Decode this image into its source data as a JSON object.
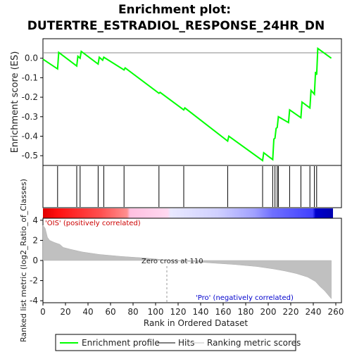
{
  "chart_data": {
    "type": "line",
    "title_line1": "Enrichment plot:",
    "title_line2": "DUTERTRE_ESTRADIOL_RESPONSE_24HR_DN",
    "es_panel": {
      "ylabel": "Enrichment score (ES)",
      "ylim": [
        -0.55,
        0.1
      ],
      "yticks": [
        "0.0",
        "-0.1",
        "-0.2",
        "-0.3",
        "-0.4",
        "-0.5"
      ],
      "ytick_values": [
        0.0,
        -0.1,
        -0.2,
        -0.3,
        -0.4,
        -0.5
      ],
      "series_name": "Enrichment profile",
      "color": "#00ff00",
      "points": [
        [
          0,
          -0.005
        ],
        [
          13,
          -0.055
        ],
        [
          14,
          0.03
        ],
        [
          30,
          -0.04
        ],
        [
          31,
          0.01
        ],
        [
          33,
          0.0
        ],
        [
          34,
          0.035
        ],
        [
          49,
          -0.03
        ],
        [
          50,
          0.005
        ],
        [
          53,
          -0.01
        ],
        [
          54,
          0.005
        ],
        [
          72,
          -0.06
        ],
        [
          73,
          -0.05
        ],
        [
          103,
          -0.18
        ],
        [
          104,
          -0.175
        ],
        [
          125,
          -0.265
        ],
        [
          126,
          -0.255
        ],
        [
          164,
          -0.425
        ],
        [
          165,
          -0.4
        ],
        [
          195,
          -0.525
        ],
        [
          196,
          -0.485
        ],
        [
          204,
          -0.52
        ],
        [
          205,
          -0.415
        ],
        [
          206,
          -0.41
        ],
        [
          207,
          -0.36
        ],
        [
          208,
          -0.355
        ],
        [
          209,
          -0.3
        ],
        [
          218,
          -0.33
        ],
        [
          219,
          -0.265
        ],
        [
          229,
          -0.305
        ],
        [
          230,
          -0.225
        ],
        [
          237,
          -0.255
        ],
        [
          238,
          -0.165
        ],
        [
          241,
          -0.185
        ],
        [
          242,
          -0.07
        ],
        [
          243,
          -0.085
        ],
        [
          244,
          0.05
        ],
        [
          256,
          0.0
        ]
      ]
    },
    "hits_panel": {
      "series_name": "Hits",
      "hit_ranks": [
        13,
        30,
        33,
        49,
        54,
        72,
        103,
        125,
        164,
        195,
        204,
        206,
        208,
        209,
        219,
        229,
        237,
        241,
        243
      ]
    },
    "ranking_panel": {
      "ylabel": "Ranked list metric (log2_Ratio_of_Classes)",
      "xlabel": "Rank in Ordered Dataset",
      "xlim": [
        0,
        265
      ],
      "ylim": [
        -4.2,
        4.2
      ],
      "xticks": [
        "0",
        "20",
        "40",
        "60",
        "80",
        "100",
        "120",
        "140",
        "160",
        "180",
        "200",
        "220",
        "240",
        "260"
      ],
      "xtick_values": [
        0,
        20,
        40,
        60,
        80,
        100,
        120,
        140,
        160,
        180,
        200,
        220,
        240,
        260
      ],
      "yticks": [
        "4",
        "2",
        "0",
        "-2",
        "-4"
      ],
      "ytick_values": [
        4,
        2,
        0,
        -2,
        -4
      ],
      "series_name": "Ranking metric scores",
      "metric_profile": [
        [
          0,
          3.5
        ],
        [
          2,
          3.2
        ],
        [
          4,
          2.3
        ],
        [
          6,
          2.0
        ],
        [
          10,
          1.8
        ],
        [
          15,
          1.6
        ],
        [
          18,
          1.3
        ],
        [
          25,
          1.1
        ],
        [
          35,
          0.85
        ],
        [
          50,
          0.6
        ],
        [
          70,
          0.4
        ],
        [
          90,
          0.25
        ],
        [
          105,
          0.1
        ],
        [
          110,
          0.0
        ],
        [
          130,
          -0.1
        ],
        [
          150,
          -0.25
        ],
        [
          170,
          -0.4
        ],
        [
          190,
          -0.6
        ],
        [
          205,
          -0.85
        ],
        [
          215,
          -1.05
        ],
        [
          225,
          -1.3
        ],
        [
          235,
          -1.65
        ],
        [
          242,
          -2.1
        ],
        [
          246,
          -2.6
        ],
        [
          250,
          -3.0
        ],
        [
          253,
          -3.4
        ],
        [
          256,
          -3.8
        ]
      ],
      "zero_cross_label": "Zero cross at 110",
      "zero_cross_rank": 110,
      "pos_label": "'OIS' (positively correlated)",
      "neg_label": "'Pro' (negatively correlated)",
      "pos_color": "#cc0000",
      "neg_color": "#0000cc"
    },
    "legend": {
      "items": [
        "Enrichment profile",
        "Hits",
        "Ranking metric scores"
      ]
    },
    "colors": {
      "profile": "#00ff00",
      "hits": "#000000",
      "metric_fill": "#c0c0c0",
      "gradient": [
        "#ff0000",
        "#ff8080",
        "#ffc0e0",
        "#e0e0ff",
        "#8080ff",
        "#3030ff",
        "#0000cc"
      ]
    }
  }
}
